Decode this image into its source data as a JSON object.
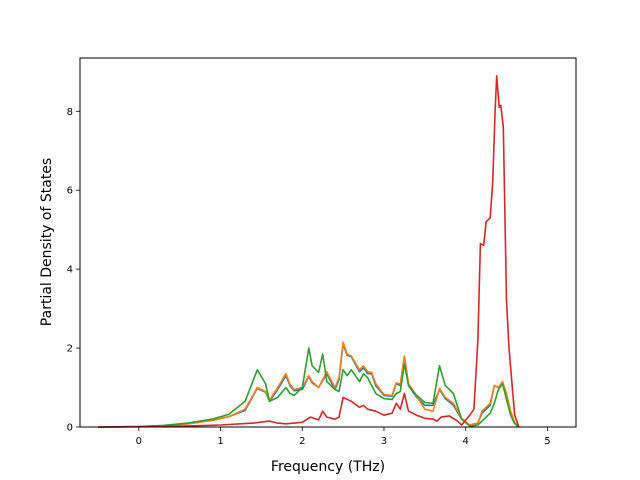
{
  "chart_data": {
    "type": "line",
    "title": "",
    "xlabel": "Frequency (THz)",
    "ylabel": "Partial Density of States",
    "xlim": [
      -0.72,
      5.35
    ],
    "ylim": [
      0,
      9.35
    ],
    "xticks": [
      "0",
      "1",
      "2",
      "3",
      "4",
      "5"
    ],
    "yticks": [
      "0",
      "2",
      "4",
      "6",
      "8"
    ],
    "grid": false,
    "legend": "none",
    "series": [
      {
        "color": "#1f77b4",
        "points": [
          [
            -0.5,
            0
          ],
          [
            0,
            0.01
          ],
          [
            0.3,
            0.03
          ],
          [
            0.6,
            0.08
          ],
          [
            0.9,
            0.17
          ],
          [
            1.1,
            0.26
          ],
          [
            1.3,
            0.42
          ],
          [
            1.45,
            0.98
          ],
          [
            1.55,
            0.88
          ],
          [
            1.6,
            0.65
          ],
          [
            1.7,
            0.95
          ],
          [
            1.8,
            1.3
          ],
          [
            1.85,
            1.05
          ],
          [
            1.9,
            0.92
          ],
          [
            2.0,
            0.95
          ],
          [
            2.08,
            1.28
          ],
          [
            2.12,
            1.12
          ],
          [
            2.2,
            1.0
          ],
          [
            2.3,
            1.35
          ],
          [
            2.4,
            0.95
          ],
          [
            2.45,
            1.2
          ],
          [
            2.5,
            2.1
          ],
          [
            2.55,
            1.82
          ],
          [
            2.6,
            1.78
          ],
          [
            2.7,
            1.4
          ],
          [
            2.75,
            1.5
          ],
          [
            2.8,
            1.35
          ],
          [
            2.85,
            1.35
          ],
          [
            2.9,
            1.05
          ],
          [
            3.0,
            0.8
          ],
          [
            3.1,
            0.78
          ],
          [
            3.15,
            1.1
          ],
          [
            3.2,
            1.05
          ],
          [
            3.25,
            1.78
          ],
          [
            3.3,
            1.05
          ],
          [
            3.4,
            0.75
          ],
          [
            3.5,
            0.55
          ],
          [
            3.6,
            0.55
          ],
          [
            3.68,
            0.95
          ],
          [
            3.75,
            0.72
          ],
          [
            3.85,
            0.55
          ],
          [
            3.95,
            0.2
          ],
          [
            4.05,
            0.05
          ],
          [
            4.15,
            0.1
          ],
          [
            4.2,
            0.35
          ],
          [
            4.3,
            0.55
          ],
          [
            4.35,
            1.05
          ],
          [
            4.4,
            1.0
          ],
          [
            4.45,
            1.1
          ],
          [
            4.5,
            0.8
          ],
          [
            4.55,
            0.35
          ],
          [
            4.6,
            0.1
          ],
          [
            4.65,
            0
          ]
        ]
      },
      {
        "color": "#ff7f0e",
        "points": [
          [
            -0.5,
            0
          ],
          [
            0,
            0.01
          ],
          [
            0.3,
            0.03
          ],
          [
            0.6,
            0.08
          ],
          [
            0.9,
            0.17
          ],
          [
            1.1,
            0.26
          ],
          [
            1.3,
            0.45
          ],
          [
            1.45,
            1.0
          ],
          [
            1.55,
            0.9
          ],
          [
            1.6,
            0.68
          ],
          [
            1.7,
            1.0
          ],
          [
            1.8,
            1.35
          ],
          [
            1.85,
            1.08
          ],
          [
            1.9,
            0.95
          ],
          [
            2.0,
            1.0
          ],
          [
            2.08,
            1.3
          ],
          [
            2.12,
            1.15
          ],
          [
            2.2,
            1.0
          ],
          [
            2.3,
            1.4
          ],
          [
            2.4,
            1.0
          ],
          [
            2.45,
            1.25
          ],
          [
            2.5,
            2.15
          ],
          [
            2.55,
            1.85
          ],
          [
            2.6,
            1.8
          ],
          [
            2.7,
            1.45
          ],
          [
            2.75,
            1.55
          ],
          [
            2.8,
            1.4
          ],
          [
            2.85,
            1.38
          ],
          [
            2.9,
            1.1
          ],
          [
            3.0,
            0.82
          ],
          [
            3.1,
            0.8
          ],
          [
            3.15,
            1.12
          ],
          [
            3.2,
            1.08
          ],
          [
            3.25,
            1.8
          ],
          [
            3.3,
            1.1
          ],
          [
            3.4,
            0.78
          ],
          [
            3.5,
            0.45
          ],
          [
            3.6,
            0.4
          ],
          [
            3.68,
            0.98
          ],
          [
            3.75,
            0.75
          ],
          [
            3.85,
            0.6
          ],
          [
            3.95,
            0.22
          ],
          [
            4.05,
            0.05
          ],
          [
            4.15,
            0.1
          ],
          [
            4.2,
            0.4
          ],
          [
            4.3,
            0.6
          ],
          [
            4.35,
            1.05
          ],
          [
            4.4,
            1.0
          ],
          [
            4.45,
            1.15
          ],
          [
            4.5,
            0.85
          ],
          [
            4.55,
            0.4
          ],
          [
            4.6,
            0.12
          ],
          [
            4.65,
            0
          ]
        ]
      },
      {
        "color": "#2ca02c",
        "points": [
          [
            -0.5,
            0
          ],
          [
            0,
            0.01
          ],
          [
            0.3,
            0.04
          ],
          [
            0.6,
            0.1
          ],
          [
            0.9,
            0.2
          ],
          [
            1.1,
            0.32
          ],
          [
            1.3,
            0.65
          ],
          [
            1.45,
            1.45
          ],
          [
            1.55,
            1.1
          ],
          [
            1.6,
            0.65
          ],
          [
            1.7,
            0.75
          ],
          [
            1.8,
            1.0
          ],
          [
            1.85,
            0.85
          ],
          [
            1.9,
            0.8
          ],
          [
            2.0,
            1.0
          ],
          [
            2.08,
            2.0
          ],
          [
            2.12,
            1.55
          ],
          [
            2.2,
            1.38
          ],
          [
            2.25,
            1.85
          ],
          [
            2.3,
            1.15
          ],
          [
            2.4,
            0.95
          ],
          [
            2.45,
            0.9
          ],
          [
            2.5,
            1.45
          ],
          [
            2.55,
            1.3
          ],
          [
            2.6,
            1.45
          ],
          [
            2.7,
            1.15
          ],
          [
            2.75,
            1.35
          ],
          [
            2.8,
            1.25
          ],
          [
            2.85,
            1.05
          ],
          [
            2.9,
            0.85
          ],
          [
            3.0,
            0.72
          ],
          [
            3.1,
            0.7
          ],
          [
            3.15,
            0.85
          ],
          [
            3.2,
            0.9
          ],
          [
            3.25,
            1.6
          ],
          [
            3.3,
            1.05
          ],
          [
            3.4,
            0.8
          ],
          [
            3.5,
            0.62
          ],
          [
            3.6,
            0.6
          ],
          [
            3.68,
            1.55
          ],
          [
            3.75,
            1.05
          ],
          [
            3.85,
            0.85
          ],
          [
            3.95,
            0.2
          ],
          [
            4.05,
            0.02
          ],
          [
            4.15,
            0.05
          ],
          [
            4.2,
            0.15
          ],
          [
            4.3,
            0.35
          ],
          [
            4.35,
            0.6
          ],
          [
            4.4,
            0.95
          ],
          [
            4.45,
            1.1
          ],
          [
            4.5,
            0.7
          ],
          [
            4.55,
            0.3
          ],
          [
            4.6,
            0.08
          ],
          [
            4.65,
            0
          ]
        ]
      },
      {
        "color": "#d62728",
        "points": [
          [
            -0.5,
            0
          ],
          [
            0,
            0.005
          ],
          [
            0.5,
            0.02
          ],
          [
            1.0,
            0.05
          ],
          [
            1.4,
            0.1
          ],
          [
            1.6,
            0.15
          ],
          [
            1.7,
            0.1
          ],
          [
            1.8,
            0.08
          ],
          [
            2.0,
            0.12
          ],
          [
            2.1,
            0.25
          ],
          [
            2.2,
            0.18
          ],
          [
            2.25,
            0.4
          ],
          [
            2.3,
            0.25
          ],
          [
            2.4,
            0.2
          ],
          [
            2.45,
            0.25
          ],
          [
            2.5,
            0.75
          ],
          [
            2.6,
            0.65
          ],
          [
            2.7,
            0.5
          ],
          [
            2.75,
            0.55
          ],
          [
            2.8,
            0.45
          ],
          [
            2.9,
            0.4
          ],
          [
            3.0,
            0.3
          ],
          [
            3.1,
            0.35
          ],
          [
            3.15,
            0.6
          ],
          [
            3.2,
            0.45
          ],
          [
            3.25,
            0.85
          ],
          [
            3.3,
            0.4
          ],
          [
            3.4,
            0.3
          ],
          [
            3.5,
            0.22
          ],
          [
            3.6,
            0.2
          ],
          [
            3.65,
            0.15
          ],
          [
            3.7,
            0.25
          ],
          [
            3.8,
            0.28
          ],
          [
            3.9,
            0.15
          ],
          [
            3.95,
            0.05
          ],
          [
            4.05,
            0.3
          ],
          [
            4.1,
            0.45
          ],
          [
            4.15,
            2.2
          ],
          [
            4.18,
            4.65
          ],
          [
            4.22,
            4.6
          ],
          [
            4.25,
            5.2
          ],
          [
            4.3,
            5.3
          ],
          [
            4.33,
            6.2
          ],
          [
            4.36,
            8.0
          ],
          [
            4.38,
            8.9
          ],
          [
            4.41,
            8.1
          ],
          [
            4.43,
            8.15
          ],
          [
            4.46,
            7.6
          ],
          [
            4.5,
            3.2
          ],
          [
            4.53,
            2.0
          ],
          [
            4.57,
            1.0
          ],
          [
            4.6,
            0.3
          ],
          [
            4.65,
            0
          ]
        ]
      }
    ]
  }
}
